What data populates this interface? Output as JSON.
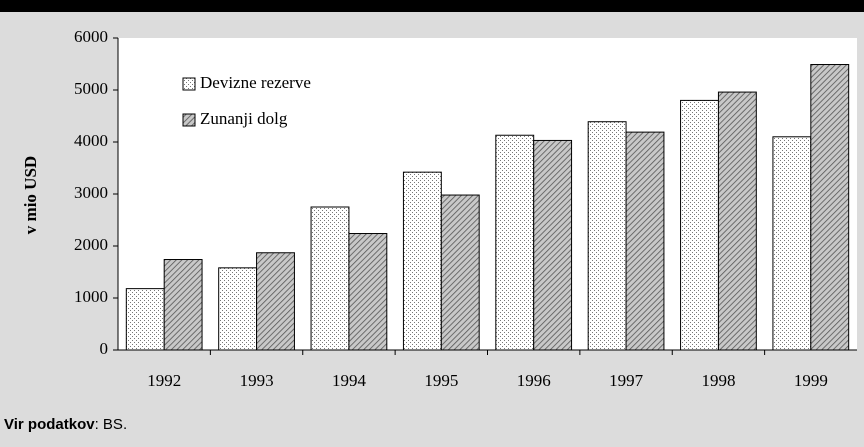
{
  "chart_data": {
    "type": "bar",
    "y_label": "v mio USD",
    "categories": [
      "1992",
      "1993",
      "1994",
      "1995",
      "1996",
      "1997",
      "1998",
      "1999"
    ],
    "series": [
      {
        "name": "Devizne rezerve",
        "pattern": "dots",
        "values": [
          1180,
          1580,
          2750,
          3420,
          4130,
          4390,
          4800,
          4100
        ]
      },
      {
        "name": "Zunanji dolg",
        "pattern": "hatch",
        "values": [
          1740,
          1870,
          2240,
          2980,
          4030,
          4190,
          4960,
          5490
        ]
      }
    ],
    "ylim": [
      0,
      6000
    ],
    "yticks": [
      0,
      1000,
      2000,
      3000,
      4000,
      5000,
      6000
    ],
    "legend": "upper left",
    "source": {
      "label": "Vir podatkov",
      "text": ": BS."
    }
  }
}
